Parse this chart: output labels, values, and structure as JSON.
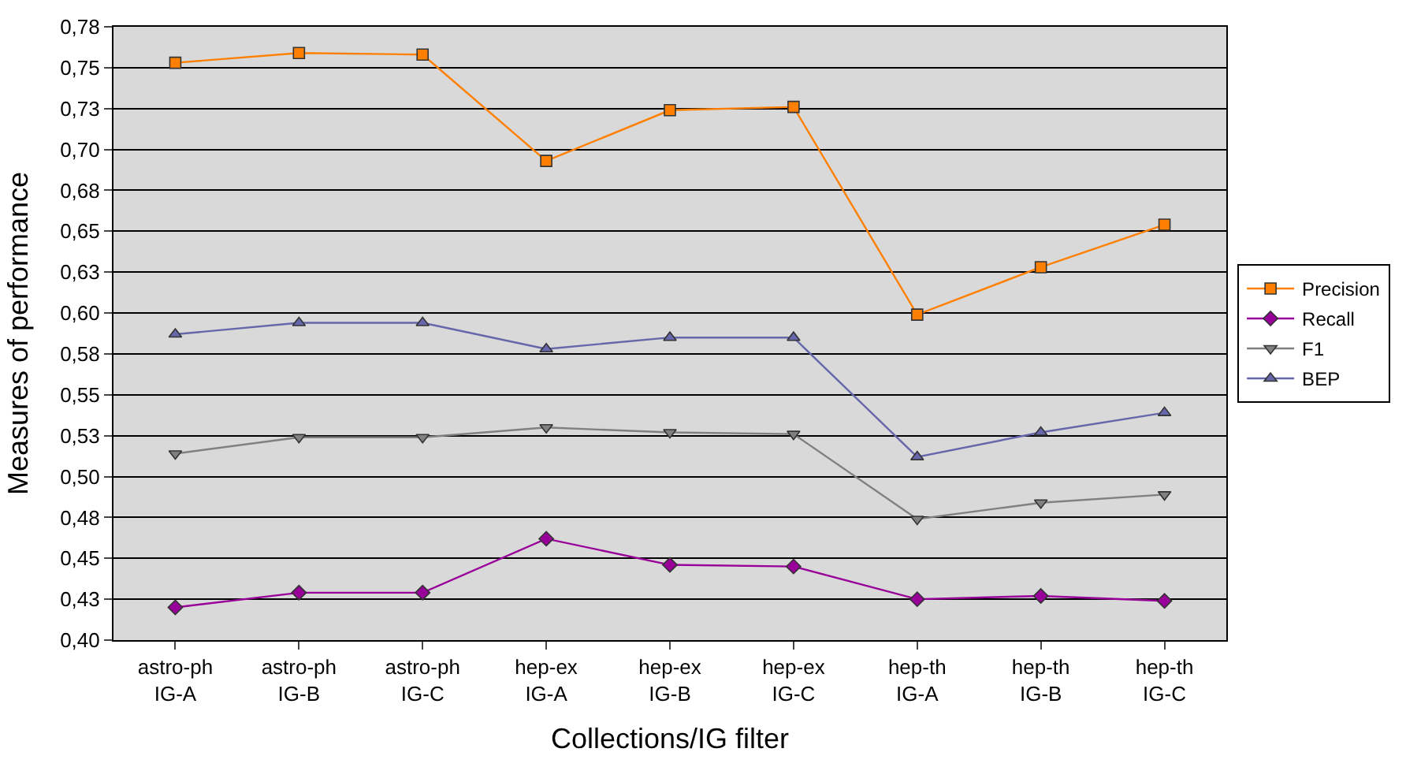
{
  "chart_data": {
    "type": "line",
    "xlabel": "Collections/IG filter",
    "ylabel": "Measures of performance",
    "categories": [
      "astro-ph\nIG-A",
      "astro-ph\nIG-B",
      "astro-ph\nIG-C",
      "hep-ex\nIG-A",
      "hep-ex\nIG-B",
      "hep-ex\nIG-C",
      "hep-th\nIG-A",
      "hep-th\nIG-B",
      "hep-th\nIG-C"
    ],
    "series": [
      {
        "name": "Precision",
        "color": "#ff8000",
        "marker": "square",
        "values": [
          0.753,
          0.759,
          0.758,
          0.693,
          0.724,
          0.726,
          0.599,
          0.628,
          0.654
        ]
      },
      {
        "name": "Recall",
        "color": "#990099",
        "marker": "diamond",
        "values": [
          0.42,
          0.429,
          0.429,
          0.462,
          0.446,
          0.445,
          0.425,
          0.427,
          0.424
        ]
      },
      {
        "name": "F1",
        "color": "#808080",
        "marker": "triangle-down",
        "values": [
          0.514,
          0.524,
          0.524,
          0.53,
          0.527,
          0.526,
          0.474,
          0.484,
          0.489
        ]
      },
      {
        "name": "BEP",
        "color": "#6666aa",
        "marker": "triangle",
        "values": [
          0.587,
          0.594,
          0.594,
          0.578,
          0.585,
          0.585,
          0.512,
          0.527,
          0.539
        ]
      }
    ],
    "ylim": [
      0.4,
      0.775
    ],
    "yticks": [
      {
        "value": 0.4,
        "label": "0,40"
      },
      {
        "value": 0.425,
        "label": "0,43"
      },
      {
        "value": 0.45,
        "label": "0,45"
      },
      {
        "value": 0.475,
        "label": "0,48"
      },
      {
        "value": 0.5,
        "label": "0,50"
      },
      {
        "value": 0.525,
        "label": "0,53"
      },
      {
        "value": 0.55,
        "label": "0,55"
      },
      {
        "value": 0.575,
        "label": "0,58"
      },
      {
        "value": 0.6,
        "label": "0,60"
      },
      {
        "value": 0.625,
        "label": "0,63"
      },
      {
        "value": 0.65,
        "label": "0,65"
      },
      {
        "value": 0.675,
        "label": "0,68"
      },
      {
        "value": 0.7,
        "label": "0,70"
      },
      {
        "value": 0.725,
        "label": "0,73"
      },
      {
        "value": 0.75,
        "label": "0,75"
      },
      {
        "value": 0.775,
        "label": "0,78"
      }
    ],
    "grid": "y",
    "legend": "right"
  }
}
